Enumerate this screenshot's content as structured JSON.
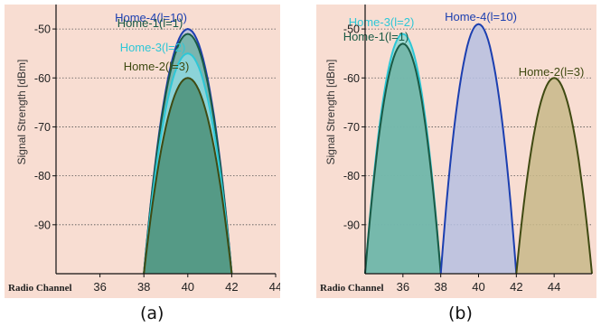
{
  "chart_data": [
    {
      "type": "area",
      "ylabel": "Signal Strength [dBm]",
      "xlabel": "Radio Channel",
      "xlim": [
        34,
        44
      ],
      "ylim": [
        -100,
        -45
      ],
      "xticks": [
        36,
        38,
        40,
        42,
        44
      ],
      "yticks": [
        -50,
        -60,
        -70,
        -80,
        -90
      ],
      "grid": "horizontal dotted",
      "caption": "(a)",
      "tick_labels": {
        "x": [
          "36",
          "38",
          "40",
          "42",
          "44"
        ],
        "y": [
          "-50",
          "-60",
          "-70",
          "-80",
          "-90"
        ]
      },
      "series": [
        {
          "name": "Home-4(l=10)",
          "center": 40,
          "peak": -50,
          "fill": "#b6bfe2",
          "stroke": "#1c3fb0"
        },
        {
          "name": "Home-1(l=1)",
          "center": 40,
          "peak": -51,
          "fill": "#6fb3a6",
          "stroke": "#1a5a45"
        },
        {
          "name": "Home-3(l=2)",
          "center": 40,
          "peak": -55,
          "fill": "#8fd8df",
          "stroke": "#2ec7d6"
        },
        {
          "name": "Home-2(l=3)",
          "center": 40,
          "peak": -60,
          "fill": "#4b8f78",
          "stroke": "#3f4a12"
        }
      ]
    },
    {
      "type": "area",
      "ylabel": "Signal Strength [dBm]",
      "xlabel": "Radio Channel",
      "xlim": [
        34,
        46
      ],
      "ylim": [
        -100,
        -45
      ],
      "xticks": [
        36,
        38,
        40,
        42,
        44
      ],
      "yticks": [
        -50,
        -60,
        -70,
        -80,
        -90
      ],
      "grid": "horizontal dotted",
      "caption": "(b)",
      "tick_labels": {
        "x": [
          "36",
          "38",
          "40",
          "42",
          "44"
        ],
        "y": [
          "-50",
          "-60",
          "-70",
          "-80",
          "-90"
        ]
      },
      "series": [
        {
          "name": "Home-3(l=2)",
          "center": 36,
          "peak": -51,
          "fill": "#8fd8d2",
          "stroke": "#2ec7d6"
        },
        {
          "name": "Home-1(l=1)",
          "center": 36,
          "peak": -53,
          "fill": "#6fb3a6",
          "stroke": "#1a5a45"
        },
        {
          "name": "Home-4(l=10)",
          "center": 40,
          "peak": -49,
          "fill": "#b6bfe2",
          "stroke": "#1c3fb0"
        },
        {
          "name": "Home-2(l=3)",
          "center": 44,
          "peak": -60,
          "fill": "#c8b88a",
          "stroke": "#3f4a12"
        }
      ]
    }
  ],
  "colors": {
    "plot_background": "#f8ddd2",
    "axis": "#111111"
  }
}
